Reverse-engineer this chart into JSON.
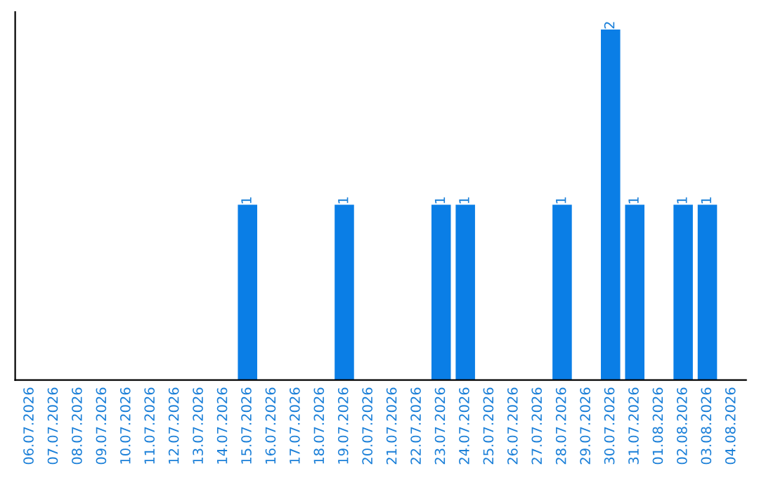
{
  "chart_data": {
    "type": "bar",
    "categories": [
      "06.07.2026",
      "07.07.2026",
      "08.07.2026",
      "09.07.2026",
      "10.07.2026",
      "11.07.2026",
      "12.07.2026",
      "13.07.2026",
      "14.07.2026",
      "15.07.2026",
      "16.07.2026",
      "17.07.2026",
      "18.07.2026",
      "19.07.2026",
      "20.07.2026",
      "21.07.2026",
      "22.07.2026",
      "23.07.2026",
      "24.07.2026",
      "25.07.2026",
      "26.07.2026",
      "27.07.2026",
      "28.07.2026",
      "29.07.2026",
      "30.07.2026",
      "31.07.2026",
      "01.08.2026",
      "02.08.2026",
      "03.08.2026",
      "04.08.2026"
    ],
    "values": [
      0,
      0,
      0,
      0,
      0,
      0,
      0,
      0,
      0,
      1,
      0,
      0,
      0,
      1,
      0,
      0,
      0,
      1,
      1,
      0,
      0,
      0,
      1,
      0,
      2,
      1,
      0,
      1,
      1,
      0
    ],
    "value_labels": [
      null,
      null,
      null,
      null,
      null,
      null,
      null,
      null,
      null,
      "1",
      null,
      null,
      null,
      "1",
      null,
      null,
      null,
      "1",
      "1",
      null,
      null,
      null,
      "1",
      null,
      "2",
      "1",
      null,
      "1",
      "1",
      null
    ],
    "color": "#0a7ee6",
    "ylim": [
      0,
      2.1
    ],
    "tick_labels": "x",
    "grid": false,
    "legend": false
  }
}
